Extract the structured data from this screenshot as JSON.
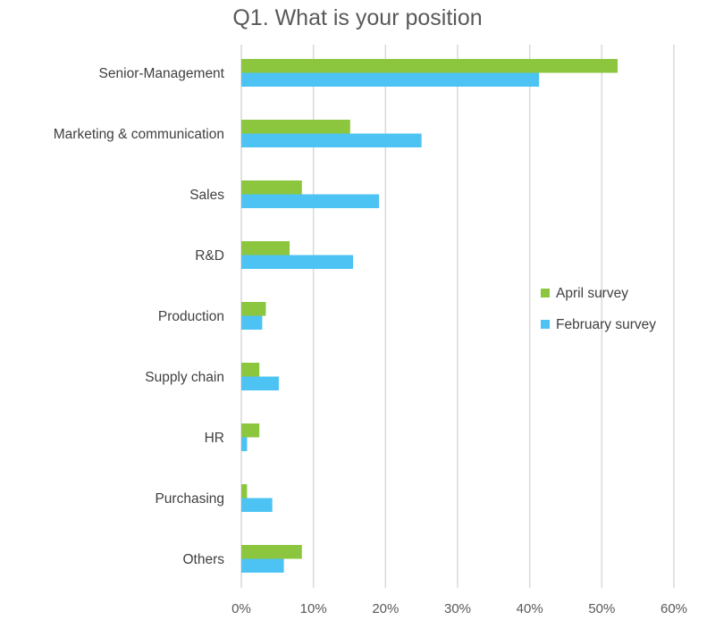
{
  "chart_data": {
    "type": "bar",
    "orientation": "horizontal",
    "title": "Q1. What is your position",
    "categories": [
      "Senior-Management",
      "Marketing & communication",
      "Sales",
      "R&D",
      "Production",
      "Supply chain",
      "HR",
      "Purchasing",
      "Others"
    ],
    "series": [
      {
        "name": "April survey",
        "color": "#8cc63f",
        "values": [
          52.2,
          15.1,
          8.4,
          6.7,
          3.4,
          2.5,
          2.5,
          0.8,
          8.4
        ]
      },
      {
        "name": "February survey",
        "color": "#4cc3f3",
        "values": [
          41.3,
          25.0,
          19.1,
          15.5,
          2.9,
          5.2,
          0.8,
          4.3,
          5.9
        ]
      }
    ],
    "xlim": [
      0,
      60
    ],
    "xticks": [
      "0%",
      "10%",
      "20%",
      "30%",
      "40%",
      "50%",
      "60%"
    ],
    "grid": true,
    "legend_position": "right"
  }
}
